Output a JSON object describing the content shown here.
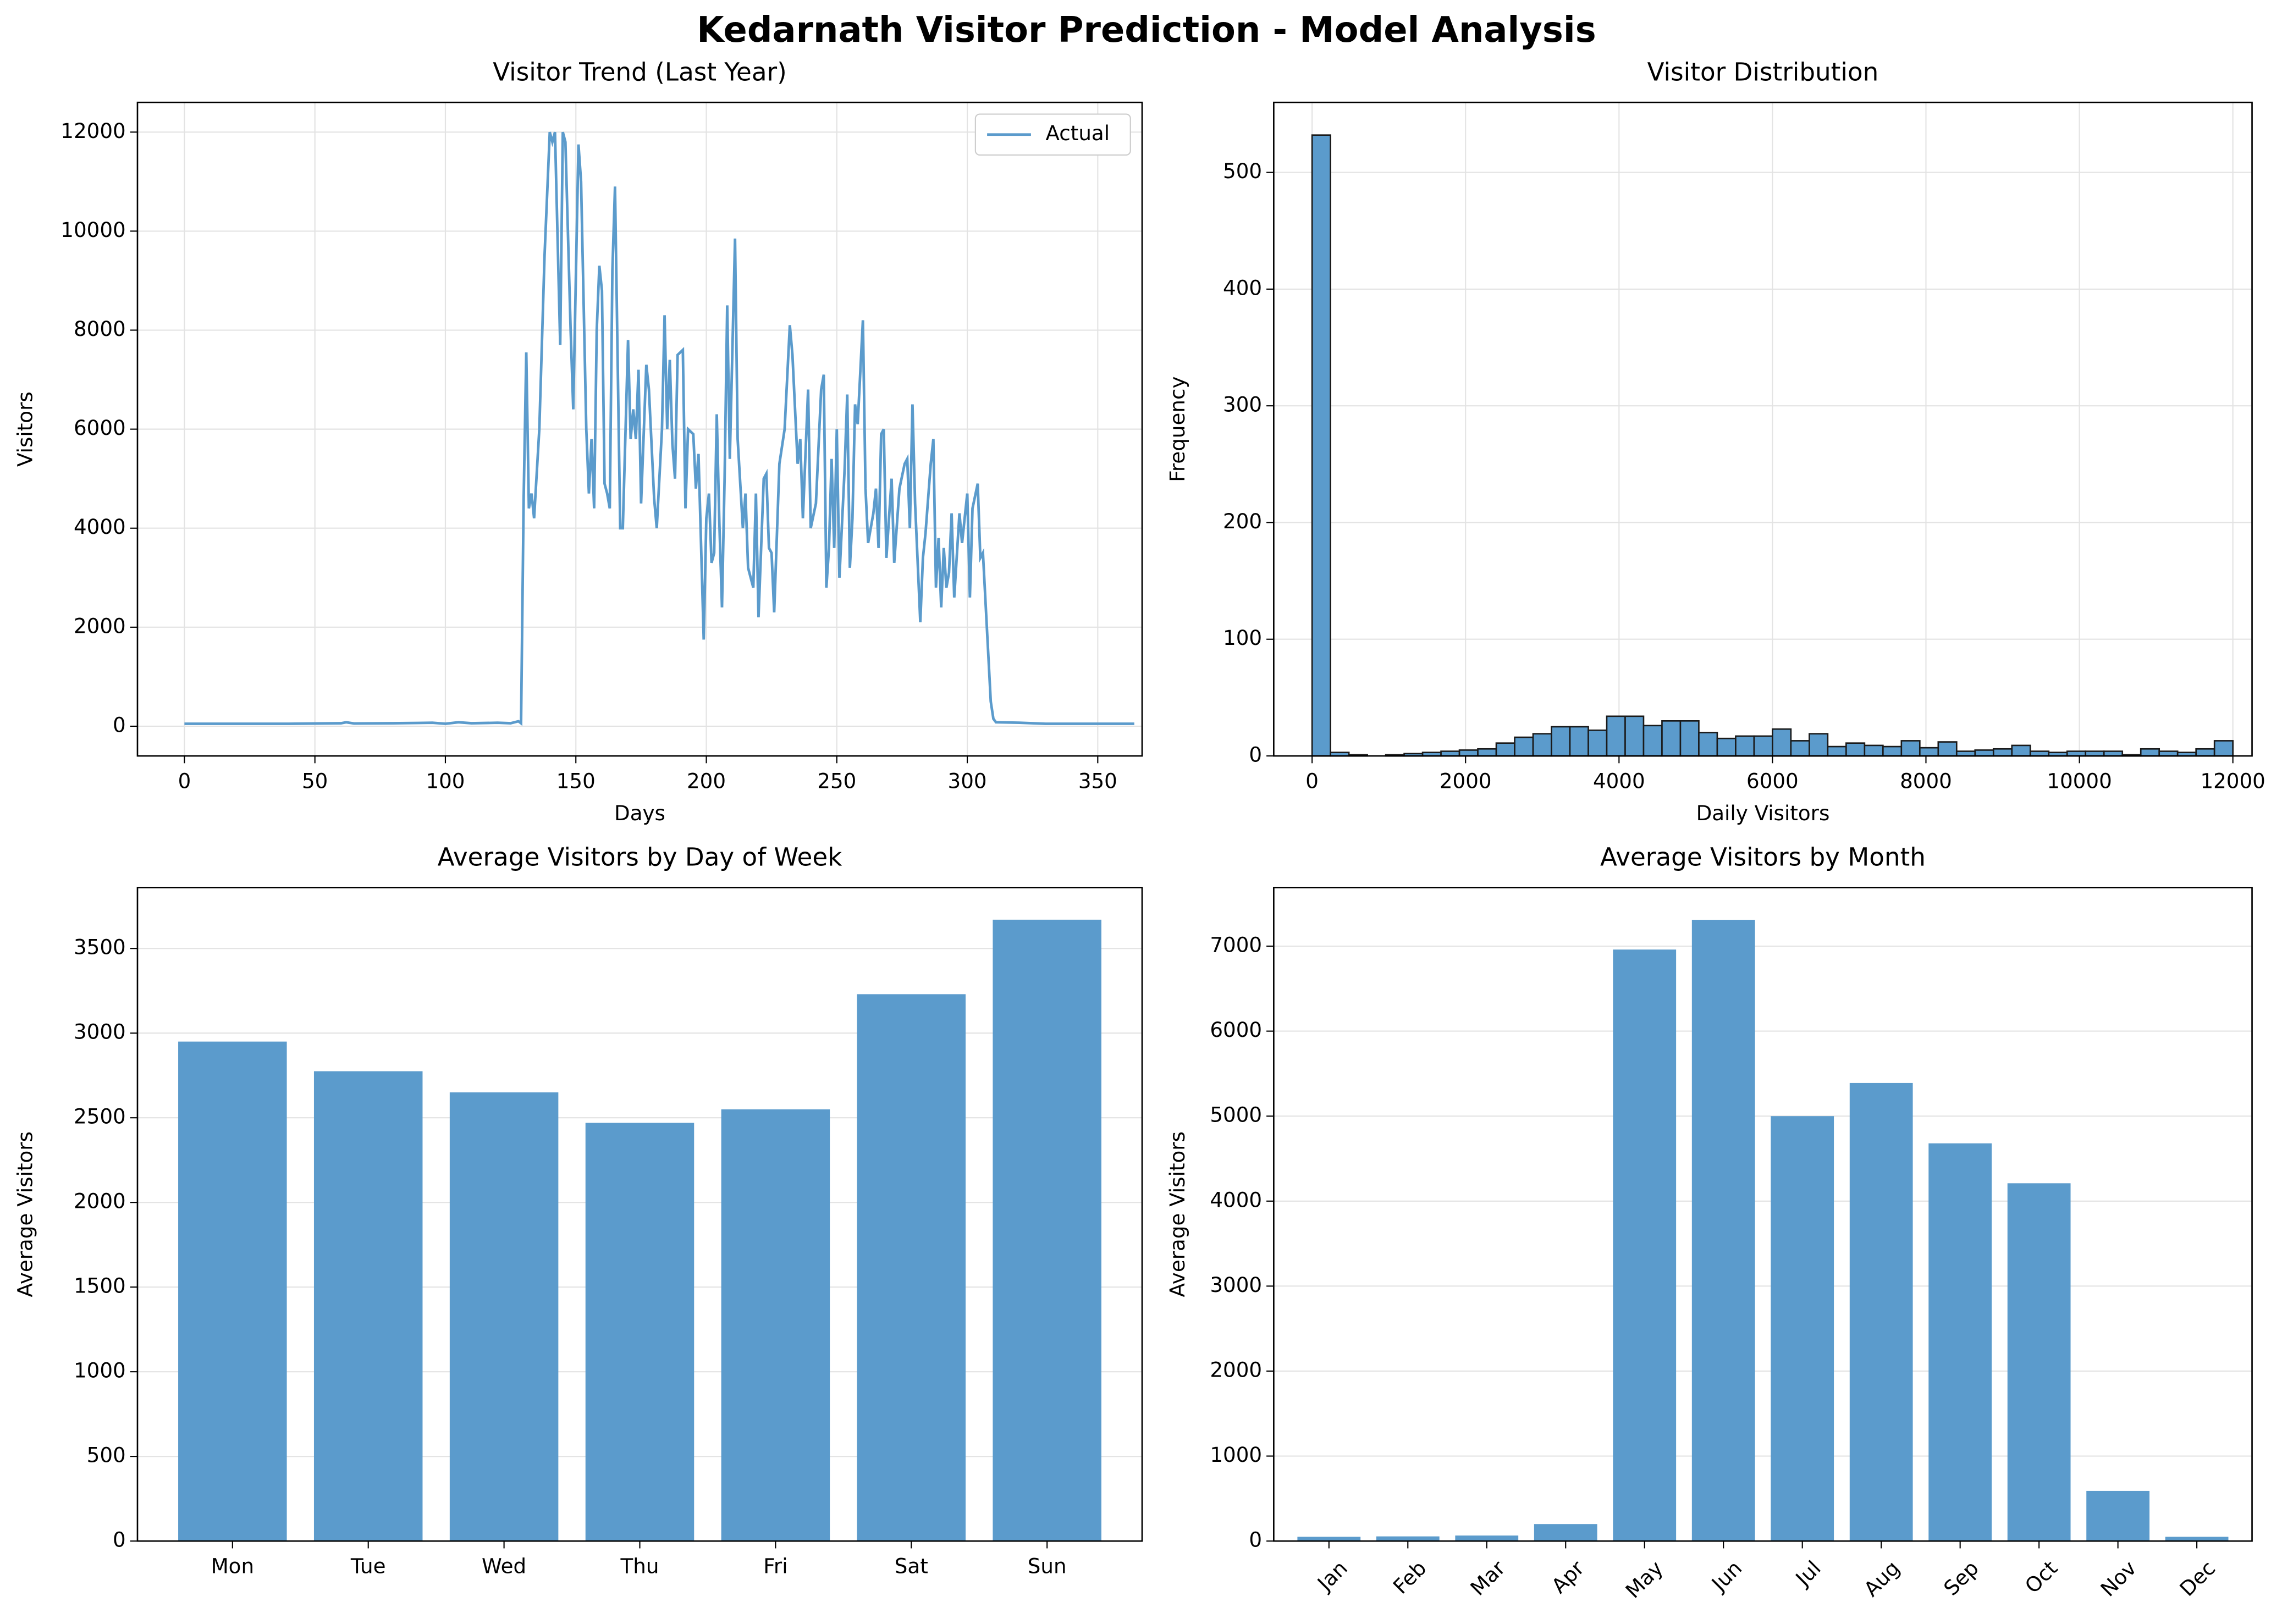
{
  "title": "Kedarnath Visitor Prediction - Model Analysis",
  "chart_data": [
    {
      "type": "line",
      "title": "Visitor Trend (Last Year)",
      "x_label": "Days",
      "y_label": "Visitors",
      "x": [
        0,
        20,
        40,
        60,
        62,
        65,
        80,
        95,
        100,
        105,
        110,
        120,
        125,
        128,
        129,
        130,
        131,
        132,
        133,
        134,
        136,
        138,
        140,
        141,
        142,
        144,
        145,
        146,
        148,
        149,
        151,
        152,
        154,
        155,
        156,
        157,
        158,
        159,
        160,
        161,
        162,
        163,
        164,
        165,
        167,
        168,
        170,
        171,
        172,
        173,
        174,
        175,
        177,
        178,
        180,
        181,
        183,
        184,
        185,
        186,
        187,
        188,
        189,
        191,
        192,
        193,
        195,
        196,
        197,
        199,
        200,
        201,
        202,
        203,
        204,
        205,
        206,
        207,
        208,
        209,
        211,
        212,
        214,
        215,
        216,
        218,
        219,
        220,
        222,
        223,
        224,
        225,
        226,
        228,
        230,
        232,
        233,
        235,
        236,
        237,
        239,
        240,
        242,
        244,
        245,
        246,
        247,
        248,
        249,
        250,
        251,
        253,
        254,
        255,
        256,
        257,
        258,
        260,
        261,
        262,
        264,
        265,
        266,
        267,
        268,
        269,
        271,
        272,
        274,
        276,
        277,
        278,
        279,
        280,
        282,
        283,
        284,
        286,
        287,
        288,
        289,
        290,
        291,
        292,
        293,
        294,
        295,
        297,
        298,
        300,
        301,
        302,
        304,
        305,
        306,
        308,
        309,
        310,
        311,
        320,
        330,
        345,
        364
      ],
      "series": [
        {
          "name": "Actual",
          "color": "#5b9bcc",
          "values": [
            50,
            50,
            50,
            60,
            80,
            55,
            60,
            70,
            50,
            80,
            60,
            70,
            60,
            100,
            60,
            4600,
            7550,
            4400,
            4700,
            4200,
            6000,
            9500,
            12000,
            11800,
            12000,
            7700,
            12000,
            11800,
            8000,
            6400,
            11750,
            11000,
            6000,
            4700,
            5800,
            4400,
            8000,
            9300,
            8800,
            4900,
            4700,
            4400,
            9200,
            10900,
            4000,
            4000,
            7800,
            5800,
            6400,
            5800,
            7200,
            4500,
            7300,
            6800,
            4600,
            4000,
            6000,
            8300,
            6000,
            7400,
            5700,
            5000,
            7500,
            7600,
            4400,
            6000,
            5900,
            4800,
            5500,
            1750,
            4200,
            4700,
            3300,
            3500,
            6300,
            4100,
            2400,
            5000,
            8500,
            5400,
            9850,
            5800,
            4000,
            4700,
            3200,
            2800,
            4700,
            2200,
            5000,
            5100,
            3600,
            3500,
            2300,
            5300,
            6000,
            8100,
            7500,
            5300,
            5800,
            4200,
            6800,
            4000,
            4500,
            6800,
            7100,
            2800,
            3600,
            5400,
            3600,
            6000,
            3000,
            5200,
            6700,
            3200,
            4200,
            6500,
            6100,
            8200,
            4800,
            3700,
            4300,
            4800,
            3600,
            5900,
            6000,
            3400,
            5000,
            3300,
            4800,
            5300,
            5400,
            4000,
            6500,
            4500,
            2100,
            3400,
            3900,
            5300,
            5800,
            2800,
            3800,
            2400,
            3600,
            2800,
            3100,
            4300,
            2600,
            4300,
            3700,
            4700,
            2600,
            4400,
            4900,
            3400,
            3500,
            1500,
            500,
            150,
            80,
            70,
            50,
            50,
            50
          ]
        }
      ],
      "xlim": [
        -18,
        367
      ],
      "xticks": [
        0,
        50,
        100,
        150,
        200,
        250,
        300,
        350
      ],
      "ylim": [
        -600,
        12600
      ],
      "yticks": [
        0,
        2000,
        4000,
        6000,
        8000,
        10000,
        12000
      ],
      "grid": "both",
      "legend": "upper right"
    },
    {
      "type": "histogram",
      "title": "Visitor Distribution",
      "x_label": "Daily Visitors",
      "y_label": "Frequency",
      "color": "#5b9bcc",
      "bins": [
        0,
        240,
        480,
        720,
        960,
        1200,
        1440,
        1680,
        1920,
        2160,
        2400,
        2640,
        2880,
        3120,
        3360,
        3600,
        3840,
        4080,
        4320,
        4560,
        4800,
        5040,
        5280,
        5520,
        5760,
        6000,
        6240,
        6480,
        6720,
        6960,
        7200,
        7440,
        7680,
        7920,
        8160,
        8400,
        8640,
        8880,
        9120,
        9360,
        9600,
        9840,
        10080,
        10320,
        10560,
        10800,
        11040,
        11280,
        11520,
        11760,
        12000
      ],
      "values": [
        532,
        3,
        1,
        0,
        1,
        2,
        3,
        4,
        5,
        6,
        11,
        16,
        19,
        25,
        25,
        22,
        34,
        34,
        26,
        30,
        30,
        20,
        15,
        17,
        17,
        23,
        13,
        19,
        8,
        11,
        9,
        8,
        13,
        7,
        12,
        4,
        5,
        6,
        9,
        4,
        3,
        4,
        4,
        4,
        1,
        6,
        4,
        3,
        6,
        13
      ],
      "xlim": [
        -500,
        12250
      ],
      "xticks": [
        0,
        2000,
        4000,
        6000,
        8000,
        10000,
        12000
      ],
      "ylim": [
        0,
        560
      ],
      "yticks": [
        0,
        100,
        200,
        300,
        400,
        500
      ],
      "grid": "both"
    },
    {
      "type": "bar",
      "title": "Average Visitors by Day of Week",
      "y_label": "Average Visitors",
      "color": "#5b9bcc",
      "categories": [
        "Mon",
        "Tue",
        "Wed",
        "Thu",
        "Fri",
        "Sat",
        "Sun"
      ],
      "values": [
        2950,
        2775,
        2650,
        2470,
        2550,
        3230,
        3670
      ],
      "ylim": [
        0,
        3860
      ],
      "yticks": [
        0,
        500,
        1000,
        1500,
        2000,
        2500,
        3000,
        3500
      ],
      "grid": "y"
    },
    {
      "type": "bar",
      "title": "Average Visitors by Month",
      "y_label": "Average Visitors",
      "color": "#5b9bcc",
      "x_label_rotation": 45,
      "categories": [
        "Jan",
        "Feb",
        "Mar",
        "Apr",
        "May",
        "Jun",
        "Jul",
        "Aug",
        "Sep",
        "Oct",
        "Nov",
        "Dec"
      ],
      "values": [
        50,
        55,
        65,
        200,
        6960,
        7310,
        5000,
        5390,
        4680,
        4210,
        590,
        50
      ],
      "ylim": [
        0,
        7690
      ],
      "yticks": [
        0,
        1000,
        2000,
        3000,
        4000,
        5000,
        6000,
        7000
      ],
      "grid": "y"
    }
  ]
}
